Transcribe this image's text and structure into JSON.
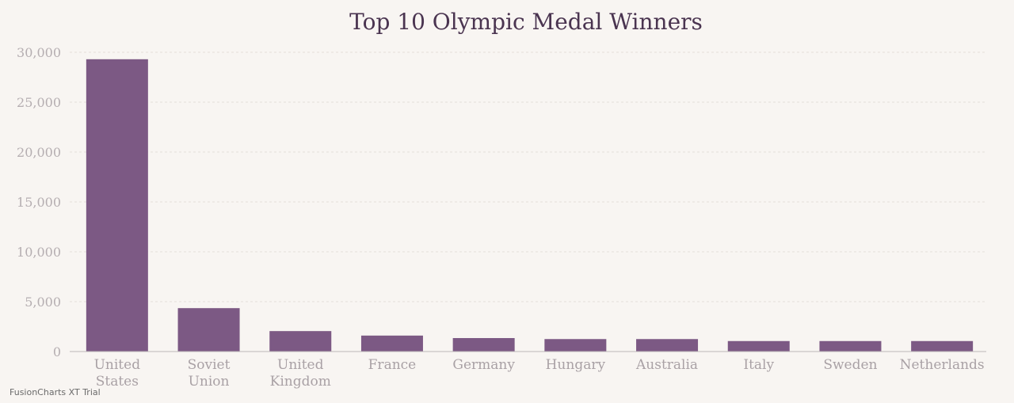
{
  "chart_data": {
    "type": "bar",
    "title": "Top 10 Olympic Medal Winners",
    "xlabel": "",
    "ylabel": "",
    "ylim": [
      0,
      30000
    ],
    "yticks": [
      0,
      5000,
      10000,
      15000,
      20000,
      25000,
      30000
    ],
    "ytick_labels": [
      "0",
      "5,000",
      "10,000",
      "15,000",
      "20,000",
      "25,000",
      "30,000"
    ],
    "grid": true,
    "legend": "none",
    "categories": [
      "United States",
      "Soviet Union",
      "United Kingdom",
      "France",
      "Germany",
      "Hungary",
      "Australia",
      "Italy",
      "Sweden",
      "Netherlands"
    ],
    "category_lines": [
      [
        "United",
        "States"
      ],
      [
        "Soviet",
        "Union"
      ],
      [
        "United",
        "Kingdom"
      ],
      [
        "France"
      ],
      [
        "Germany"
      ],
      [
        "Hungary"
      ],
      [
        "Australia"
      ],
      [
        "Italy"
      ],
      [
        "Sweden"
      ],
      [
        "Netherlands"
      ]
    ],
    "values": [
      29300,
      4350,
      2050,
      1600,
      1350,
      1250,
      1250,
      1050,
      1050,
      1050
    ],
    "bar_color": "#7c5984"
  },
  "watermark": "FusionCharts XT Trial"
}
